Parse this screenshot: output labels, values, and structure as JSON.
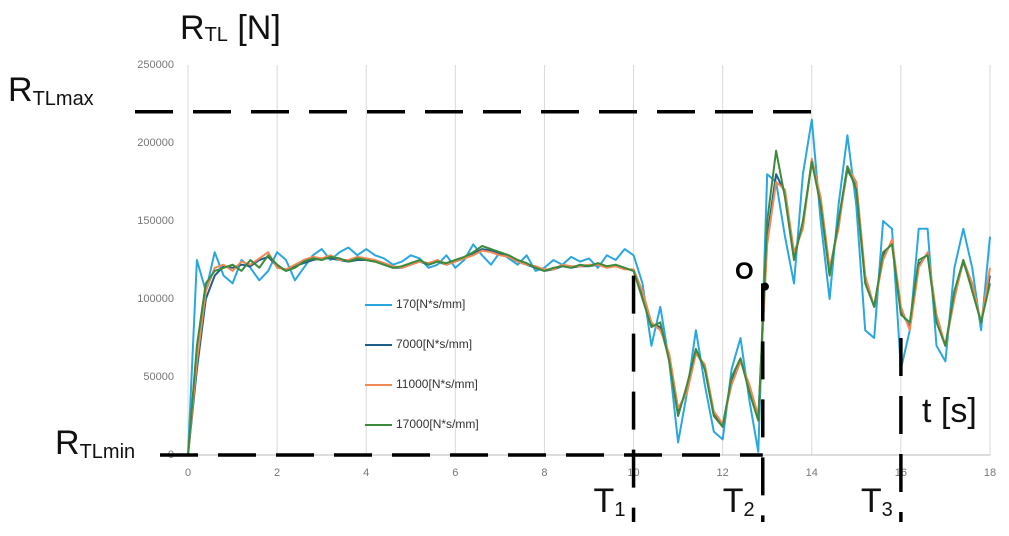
{
  "chart_data": {
    "type": "line",
    "y_label": {
      "text": "R",
      "sub": "TL",
      "suffix": " [N]"
    },
    "x_label": "t [s]",
    "x": [
      0,
      0.2,
      0.4,
      0.6,
      0.8,
      1,
      1.2,
      1.4,
      1.6,
      1.8,
      2,
      2.2,
      2.4,
      2.6,
      2.8,
      3,
      3.2,
      3.4,
      3.6,
      3.8,
      4,
      4.2,
      4.4,
      4.6,
      4.8,
      5,
      5.2,
      5.4,
      5.6,
      5.8,
      6,
      6.2,
      6.4,
      6.6,
      6.8,
      7,
      7.2,
      7.4,
      7.6,
      7.8,
      8,
      8.2,
      8.4,
      8.6,
      8.8,
      9,
      9.2,
      9.4,
      9.6,
      9.8,
      10,
      10.2,
      10.4,
      10.6,
      10.8,
      11,
      11.2,
      11.4,
      11.6,
      11.8,
      12,
      12.2,
      12.4,
      12.6,
      12.8,
      13,
      13.2,
      13.4,
      13.6,
      13.8,
      14,
      14.2,
      14.4,
      14.6,
      14.8,
      15,
      15.2,
      15.4,
      15.6,
      15.8,
      16,
      16.2,
      16.4,
      16.6,
      16.8,
      17,
      17.2,
      17.4,
      17.6,
      17.8,
      18
    ],
    "series": [
      {
        "name": "170[N*s/mm]",
        "color": "#2aa7df",
        "values": [
          0,
          125000,
          105000,
          130000,
          115000,
          110000,
          125000,
          120000,
          112000,
          118000,
          130000,
          125000,
          112000,
          120000,
          128000,
          132000,
          125000,
          130000,
          133000,
          128000,
          132000,
          128000,
          126000,
          122000,
          124000,
          128000,
          126000,
          120000,
          122000,
          128000,
          120000,
          125000,
          135000,
          128000,
          122000,
          130000,
          126000,
          122000,
          128000,
          118000,
          120000,
          125000,
          122000,
          127000,
          124000,
          126000,
          120000,
          128000,
          125000,
          132000,
          128000,
          110000,
          70000,
          95000,
          60000,
          8000,
          40000,
          80000,
          45000,
          15000,
          10000,
          55000,
          75000,
          35000,
          2000,
          180000,
          175000,
          140000,
          110000,
          180000,
          215000,
          150000,
          100000,
          160000,
          205000,
          160000,
          80000,
          75000,
          150000,
          145000,
          55000,
          80000,
          145000,
          145000,
          70000,
          60000,
          120000,
          145000,
          120000,
          80000,
          140000
        ]
      },
      {
        "name": "7000[N*s/mm]",
        "color": "#1f5f8b",
        "values": [
          0,
          55000,
          100000,
          115000,
          121000,
          120000,
          122000,
          121000,
          125000,
          127000,
          121000,
          118000,
          121000,
          123000,
          125000,
          126000,
          126000,
          125000,
          124000,
          125000,
          125000,
          124000,
          122000,
          120000,
          120000,
          122000,
          124000,
          122000,
          124000,
          122000,
          124000,
          126000,
          129000,
          132000,
          131000,
          129000,
          127000,
          124000,
          122000,
          120000,
          118000,
          119000,
          121000,
          120000,
          121000,
          121000,
          122000,
          121000,
          121000,
          120000,
          118000,
          103000,
          84000,
          82000,
          62000,
          28000,
          42000,
          66000,
          56000,
          26000,
          19000,
          48000,
          61000,
          42000,
          23000,
          140000,
          180000,
          168000,
          128000,
          148000,
          188000,
          163000,
          118000,
          148000,
          183000,
          172000,
          112000,
          95000,
          128000,
          136000,
          92000,
          82000,
          122000,
          129000,
          87000,
          70000,
          102000,
          124000,
          107000,
          85000,
          115000
        ]
      },
      {
        "name": "11000[N*s/mm]",
        "color": "#ef8a57",
        "values": [
          0,
          60000,
          105000,
          120000,
          122000,
          118000,
          124000,
          122000,
          126000,
          130000,
          120000,
          119000,
          122000,
          125000,
          127000,
          126000,
          128000,
          125000,
          125000,
          127000,
          126000,
          125000,
          123000,
          121000,
          120000,
          122000,
          124000,
          123000,
          125000,
          122000,
          124000,
          126000,
          128000,
          131000,
          130000,
          128000,
          127000,
          124000,
          122000,
          121000,
          119000,
          119000,
          122000,
          121000,
          121000,
          122000,
          122000,
          120000,
          121000,
          119000,
          119000,
          105000,
          85000,
          80000,
          65000,
          30000,
          40000,
          65000,
          58000,
          28000,
          20000,
          45000,
          60000,
          45000,
          25000,
          135000,
          175000,
          170000,
          130000,
          145000,
          190000,
          165000,
          120000,
          145000,
          185000,
          175000,
          115000,
          95000,
          125000,
          138000,
          95000,
          80000,
          120000,
          130000,
          90000,
          70000,
          100000,
          125000,
          110000,
          85000,
          120000
        ]
      },
      {
        "name": "17000[N*s/mm]",
        "color": "#3c8b3c",
        "values": [
          0,
          70000,
          110000,
          118000,
          120000,
          122000,
          118000,
          125000,
          120000,
          128000,
          122000,
          118000,
          120000,
          124000,
          126000,
          125000,
          127000,
          126000,
          124000,
          126000,
          125000,
          124000,
          122000,
          120000,
          121000,
          123000,
          125000,
          122000,
          124000,
          123000,
          125000,
          127000,
          130000,
          134000,
          132000,
          130000,
          128000,
          125000,
          123000,
          120000,
          118000,
          120000,
          121000,
          120000,
          122000,
          121000,
          123000,
          121000,
          122000,
          120000,
          118000,
          100000,
          82000,
          85000,
          60000,
          25000,
          45000,
          68000,
          55000,
          25000,
          18000,
          50000,
          62000,
          40000,
          22000,
          150000,
          195000,
          165000,
          125000,
          150000,
          188000,
          160000,
          115000,
          150000,
          185000,
          170000,
          110000,
          95000,
          130000,
          135000,
          90000,
          85000,
          125000,
          128000,
          85000,
          70000,
          105000,
          125000,
          105000,
          85000,
          110000
        ]
      }
    ],
    "xlim": [
      0,
      18
    ],
    "xticks": [
      0,
      2,
      4,
      6,
      8,
      10,
      12,
      14,
      16,
      18
    ],
    "ylim": [
      0,
      250000
    ],
    "yticks": [
      0,
      50000,
      100000,
      150000,
      200000,
      250000
    ],
    "grid": true,
    "h_lines": [
      {
        "text": "R",
        "sub": "TLmax",
        "value": 220000,
        "x_end": 14.2
      },
      {
        "text": "R",
        "sub": "TLmin",
        "value": 0,
        "x_end": 12.9
      }
    ],
    "v_lines": [
      {
        "text": "T",
        "sub": "1",
        "value": 10,
        "y_top": 115000
      },
      {
        "text": "T",
        "sub": "2",
        "value": 12.9,
        "y_top": 110000
      },
      {
        "text": "T",
        "sub": "3",
        "value": 16,
        "y_top": 75000
      }
    ],
    "point": {
      "label": "O",
      "x": 12.95,
      "y": 108000
    }
  }
}
